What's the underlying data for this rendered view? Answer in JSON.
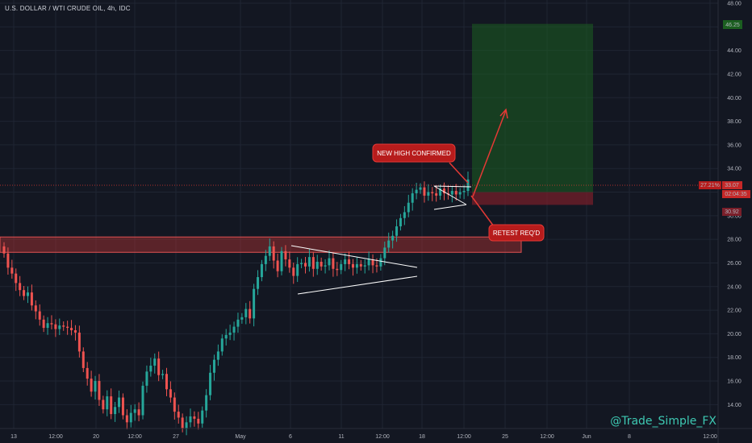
{
  "header": {
    "symbol_title": "U.S. DOLLAR / WTI CRUDE OIL, 4h, IDC"
  },
  "watermark": "@Trade_Simple_FX",
  "colors": {
    "background": "#131722",
    "grid": "#1f2533",
    "up_candle": "#26a69a",
    "down_candle": "#ef5350",
    "zone": "#b23234",
    "target_zone": "#1b5e20",
    "stop_zone": "#7a1f2a",
    "annotation": "#e53935"
  },
  "chart_data": {
    "type": "candlestick",
    "timeframe": "4h",
    "y_axis": {
      "ticks": [
        "48.00",
        "46.00",
        "44.00",
        "42.00",
        "40.00",
        "38.00",
        "36.00",
        "34.00",
        "32.00",
        "30.00",
        "28.00",
        "26.00",
        "24.00",
        "22.00",
        "20.00",
        "18.00",
        "16.00",
        "14.00"
      ],
      "range": [
        13,
        48
      ]
    },
    "x_axis": {
      "ticks": [
        "13",
        "12:00",
        "20",
        "12:00",
        "27",
        "May",
        "6",
        "11",
        "12:00",
        "18",
        "12:00",
        "25",
        "12:00",
        "Jun",
        "8",
        "12:00"
      ]
    },
    "price_labels": {
      "target": "46.25",
      "last_pct": "27.21%",
      "last": "33.07",
      "countdown": "02:04:35",
      "level_32": "32.00",
      "stop": "30.92"
    },
    "annotations": {
      "new_high": "NEW HIGH CONFIRMED",
      "retest": "RETEST REQ'D"
    },
    "resistance_zone": [
      26.9,
      28.2
    ],
    "target_zone": [
      30.92,
      46.25
    ],
    "stop_zone": [
      30.92,
      32.0
    ],
    "candle_closes": [
      26.8,
      25.6,
      25.1,
      24.3,
      23.7,
      23.2,
      23.5,
      22.4,
      21.9,
      21.2,
      20.5,
      20.9,
      20.8,
      20.4,
      20.7,
      20.6,
      20.5,
      20.3,
      20.1,
      18.5,
      17.1,
      16.2,
      15.1,
      16.0,
      14.4,
      13.6,
      14.7,
      13.2,
      13.8,
      14.6,
      13.1,
      12.5,
      13.3,
      13.6,
      13.1,
      15.6,
      16.8,
      17.3,
      17.9,
      16.5,
      16.6,
      15.3,
      14.6,
      13.4,
      12.9,
      12.0,
      12.5,
      13.0,
      12.8,
      12.4,
      13.5,
      14.8,
      16.7,
      17.8,
      18.5,
      19.6,
      19.9,
      20.1,
      20.6,
      21.2,
      21.4,
      22.1,
      21.3,
      23.8,
      24.8,
      25.9,
      26.6,
      27.4,
      26.2,
      25.3,
      27.0,
      26.3,
      25.6,
      24.9,
      25.9,
      26.0,
      25.7,
      26.5,
      25.5,
      26.1,
      25.7,
      25.8,
      26.4,
      25.5,
      25.4,
      25.9,
      26.3,
      25.9,
      25.6,
      25.9,
      25.7,
      25.8,
      26.3,
      25.8,
      25.7,
      26.4,
      27.3,
      27.9,
      28.3,
      29.1,
      29.8,
      30.3,
      31.1,
      31.9,
      32.2,
      32.4,
      31.7,
      32.0,
      31.9,
      31.7,
      32.3,
      31.9,
      31.8,
      32.1,
      31.8,
      32.0,
      32.1,
      33.07
    ]
  }
}
